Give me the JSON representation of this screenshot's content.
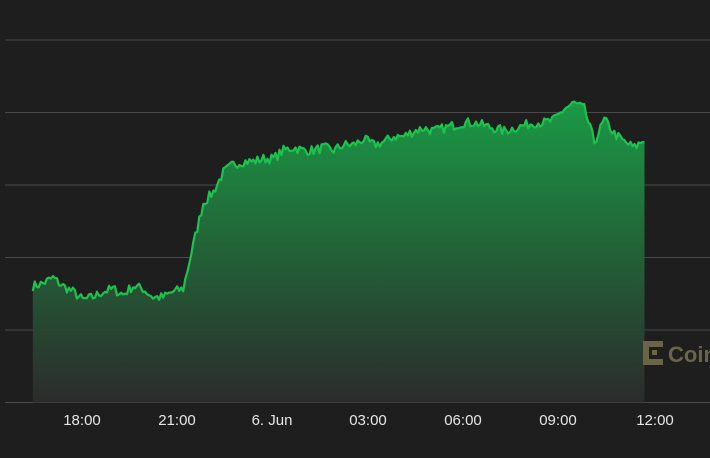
{
  "chart_data": {
    "type": "area",
    "x_ticks": [
      "18:00",
      "21:00",
      "6. Jun",
      "03:00",
      "06:00",
      "09:00",
      "12:00"
    ],
    "y_gridlines": 6,
    "x": [
      "16:17",
      "16:38",
      "16:59",
      "17:20",
      "17:41",
      "18:02",
      "18:23",
      "18:44",
      "19:05",
      "19:26",
      "19:47",
      "20:08",
      "20:29",
      "20:50",
      "21:11",
      "21:32",
      "21:53",
      "22:14",
      "22:35",
      "22:56",
      "23:17",
      "23:38",
      "23:59",
      "00:20",
      "00:41",
      "01:02",
      "01:23",
      "01:44",
      "02:05",
      "02:26",
      "02:47",
      "03:08",
      "03:29",
      "03:50",
      "04:11",
      "04:32",
      "04:53",
      "05:14",
      "05:35",
      "05:56",
      "06:17",
      "06:38",
      "06:59",
      "07:20",
      "07:41",
      "08:02",
      "08:23",
      "08:44",
      "09:05",
      "09:26",
      "09:47",
      "10:08",
      "10:29",
      "10:50",
      "11:11",
      "11:32",
      "11:53",
      "12:14",
      "12:35",
      "12:56",
      "13:17",
      "13:38"
    ],
    "values": [
      4.2,
      4.3,
      4.5,
      4.2,
      4.0,
      3.7,
      3.8,
      4.0,
      4.1,
      3.9,
      4.2,
      4.1,
      3.8,
      3.8,
      4.0,
      4.1,
      5.7,
      7.2,
      7.6,
      8.3,
      8.6,
      8.7,
      8.7,
      8.8,
      8.8,
      9.1,
      9.2,
      9.1,
      9.1,
      9.2,
      9.1,
      9.3,
      9.3,
      9.5,
      9.3,
      9.4,
      9.6,
      9.6,
      9.8,
      9.9,
      9.8,
      9.9,
      10.0,
      10.1,
      10.1,
      10.0,
      9.9,
      9.8,
      9.9,
      10.0,
      10.1,
      10.1,
      10.2,
      10.6,
      10.8,
      10.6,
      9.4,
      10.2,
      9.7,
      9.4,
      9.2,
      9.5
    ],
    "color": "#1ec24e"
  },
  "watermark": {
    "text": "Coin",
    "color": "#6a6547",
    "icon": "coindesk-logo-icon"
  }
}
